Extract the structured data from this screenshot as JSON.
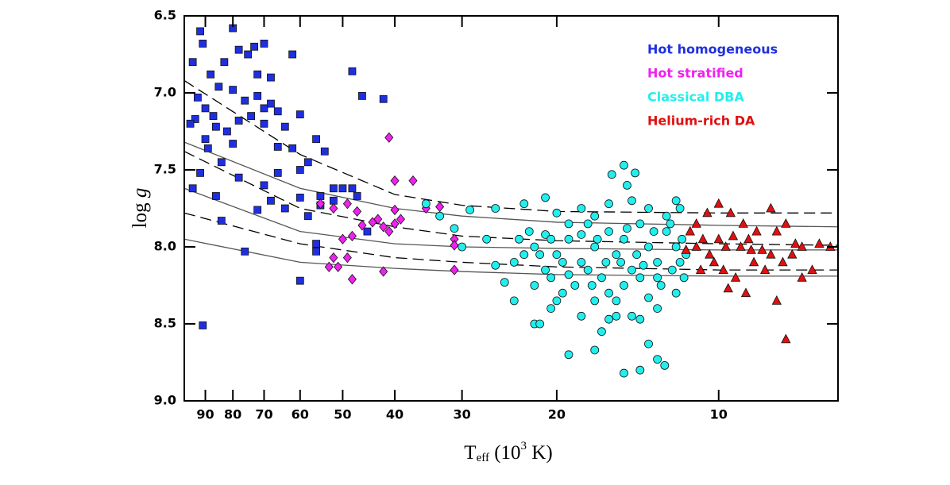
{
  "chart_data": {
    "type": "scatter",
    "xlabel": {
      "main": "T",
      "sub": "eff",
      "rest": " (10",
      "sup": "3",
      "end": " K)"
    },
    "ylabel": {
      "main": "log",
      "italic": "g"
    },
    "xscale": "log",
    "xreverse": true,
    "xlim": [
      6,
      98.5
    ],
    "xticks": [
      90,
      80,
      70,
      60,
      50,
      40,
      30,
      20,
      10
    ],
    "yreverse": true,
    "ylim": [
      6.5,
      9.0
    ],
    "yticks": [
      6.5,
      {
        "value": 7,
        "label": "7.0"
      },
      7.5,
      {
        "value": 8,
        "label": "8.0"
      },
      8.5,
      {
        "value": 9,
        "label": "9.0"
      }
    ],
    "legend": "upper right",
    "series": [
      {
        "name": "Hot homogeneous",
        "color": "#1f2fe0",
        "marker": "square",
        "x": [
          92,
          91,
          95,
          80,
          88,
          83,
          78,
          73,
          70,
          75,
          72,
          68,
          62,
          48,
          46,
          42,
          93,
          90,
          87,
          85,
          80,
          76,
          72,
          70,
          68,
          66,
          60,
          56,
          54,
          58,
          60,
          62,
          64,
          66,
          70,
          74,
          78,
          82,
          86,
          90,
          94,
          96,
          89,
          84,
          80,
          92,
          95,
          86,
          78,
          70,
          68,
          72,
          64,
          60,
          58,
          55,
          52,
          50,
          47,
          45,
          56,
          56,
          76,
          84,
          60,
          91,
          66,
          52,
          48,
          55
        ],
        "y": [
          6.6,
          6.68,
          6.8,
          6.58,
          6.88,
          6.8,
          6.72,
          6.7,
          6.68,
          6.75,
          6.88,
          6.9,
          6.75,
          6.86,
          7.02,
          7.04,
          7.03,
          7.1,
          7.15,
          6.96,
          6.98,
          7.05,
          7.02,
          7.1,
          7.07,
          7.12,
          7.14,
          7.3,
          7.38,
          7.45,
          7.5,
          7.36,
          7.22,
          7.35,
          7.2,
          7.15,
          7.18,
          7.25,
          7.22,
          7.3,
          7.17,
          7.2,
          7.36,
          7.45,
          7.33,
          7.52,
          7.62,
          7.67,
          7.55,
          7.6,
          7.7,
          7.76,
          7.75,
          7.68,
          7.8,
          7.67,
          7.7,
          7.62,
          7.67,
          7.9,
          7.98,
          8.03,
          8.03,
          7.83,
          8.22,
          8.51,
          7.52,
          7.62,
          7.62,
          7.73
        ]
      },
      {
        "name": "Hot stratified",
        "color": "#f020f0",
        "marker": "diamond",
        "x": [
          41,
          40,
          37,
          55,
          52,
          49,
          47,
          46,
          43,
          42,
          40,
          39,
          41,
          35,
          33,
          44,
          48,
          50,
          31,
          31,
          31,
          52,
          49,
          51,
          53,
          48,
          42,
          40
        ],
        "y": [
          7.29,
          7.57,
          7.57,
          7.72,
          7.75,
          7.72,
          7.77,
          7.86,
          7.82,
          7.87,
          7.76,
          7.82,
          7.9,
          7.75,
          7.74,
          7.84,
          7.93,
          7.95,
          7.95,
          7.99,
          8.15,
          8.07,
          8.07,
          8.13,
          8.13,
          8.21,
          8.16,
          7.85
        ]
      },
      {
        "name": "Classical DBA",
        "color": "#22eeee",
        "marker": "circle",
        "x": [
          35,
          33,
          31,
          30,
          29,
          26,
          27,
          26,
          25,
          23,
          21,
          20,
          24,
          22,
          21.5,
          20.5,
          19,
          17,
          16.5,
          15,
          14,
          13.5,
          13,
          12.6,
          16,
          15.5,
          14.5,
          14,
          15,
          14.3,
          14.8,
          15.8,
          12,
          11.8,
          11.8,
          11.6,
          13.5,
          13,
          24,
          22.5,
          22,
          21,
          20,
          19,
          18,
          17.5,
          17,
          16.5,
          16,
          15.5,
          15,
          14.5,
          14,
          13.5,
          13,
          12.5,
          12,
          11.5,
          18.5,
          19.5,
          20.5,
          17,
          16,
          15,
          14,
          13,
          12.2,
          12.5,
          13.5,
          14.5,
          16,
          17,
          18,
          19,
          21,
          23,
          22,
          20,
          18,
          17.5,
          16.8,
          15.2,
          14.2,
          13.2,
          12.8,
          12,
          18,
          19.5,
          21.5,
          23.5,
          20.5,
          16.2,
          14.8,
          13.8,
          12.3,
          11.7,
          15.5,
          19,
          17.2
        ],
        "y": [
          7.72,
          7.8,
          7.88,
          8.0,
          7.76,
          7.75,
          7.95,
          8.12,
          8.23,
          7.72,
          7.68,
          7.78,
          8.35,
          8.5,
          8.5,
          8.4,
          8.7,
          8.67,
          8.55,
          8.82,
          8.8,
          8.63,
          8.73,
          8.77,
          8.47,
          8.45,
          8.45,
          8.47,
          7.47,
          7.52,
          7.6,
          7.53,
          7.7,
          7.75,
          8.1,
          8.2,
          8.33,
          8.4,
          8.1,
          7.9,
          8.0,
          8.15,
          8.05,
          7.95,
          8.1,
          7.85,
          8.0,
          8.2,
          7.9,
          8.05,
          7.95,
          8.15,
          7.85,
          8.0,
          8.1,
          7.9,
          8.0,
          8.05,
          8.25,
          8.3,
          8.2,
          8.35,
          8.3,
          8.25,
          8.2,
          8.2,
          8.15,
          7.8,
          7.75,
          7.7,
          7.72,
          7.8,
          7.75,
          7.85,
          7.92,
          8.05,
          8.25,
          8.35,
          8.45,
          8.15,
          7.95,
          8.1,
          8.05,
          7.9,
          8.25,
          8.3,
          7.92,
          8.1,
          8.05,
          7.95,
          7.95,
          8.1,
          7.88,
          8.12,
          7.85,
          7.95,
          8.35,
          8.18,
          8.25
        ]
      },
      {
        "name": "Helium-rich DA",
        "color": "#e01010",
        "marker": "triangle",
        "x": [
          11,
          10.5,
          10,
          9.5,
          9,
          8,
          11.3,
          11,
          10.7,
          10.4,
          10,
          9.7,
          9.4,
          9.1,
          8.8,
          8.5,
          8.3,
          8,
          7.8,
          7.5,
          7.2,
          7,
          6.5,
          10.2,
          9.8,
          9.3,
          8.6,
          8.2,
          7.6,
          7.3,
          7,
          6.7,
          9.6,
          8.9,
          7.8,
          7.5,
          10.8,
          11.5,
          6.2,
          8.7
        ],
        "y": [
          7.85,
          7.78,
          7.72,
          7.78,
          7.85,
          7.75,
          7.9,
          8.0,
          7.95,
          8.05,
          7.95,
          8.0,
          7.93,
          8.0,
          7.95,
          7.9,
          8.02,
          8.05,
          7.9,
          7.85,
          7.98,
          8.0,
          7.98,
          8.1,
          8.15,
          8.2,
          8.1,
          8.15,
          8.1,
          8.05,
          8.2,
          8.15,
          8.27,
          8.3,
          8.35,
          8.6,
          8.15,
          8.02,
          8.0,
          8.02
        ]
      }
    ],
    "curves": [
      {
        "dash": false,
        "x": [
          98.5,
          60,
          40,
          30,
          20,
          10,
          6
        ],
        "y": [
          7.32,
          7.62,
          7.75,
          7.8,
          7.84,
          7.86,
          7.87
        ]
      },
      {
        "dash": true,
        "x": [
          98.5,
          60,
          40,
          30,
          20,
          10,
          6
        ],
        "y": [
          6.92,
          7.4,
          7.66,
          7.73,
          7.77,
          7.78,
          7.78
        ]
      },
      {
        "dash": false,
        "x": [
          98.5,
          60,
          40,
          30,
          20,
          10,
          6
        ],
        "y": [
          7.62,
          7.9,
          7.98,
          8.0,
          8.01,
          8.02,
          8.02
        ]
      },
      {
        "dash": true,
        "x": [
          98.5,
          60,
          40,
          30,
          20,
          10,
          6
        ],
        "y": [
          7.38,
          7.75,
          7.87,
          7.93,
          7.96,
          7.98,
          7.99
        ]
      },
      {
        "dash": false,
        "x": [
          98.5,
          60,
          40,
          30,
          20,
          10,
          6
        ],
        "y": [
          7.95,
          8.1,
          8.14,
          8.16,
          8.18,
          8.19,
          8.19
        ]
      },
      {
        "dash": true,
        "x": [
          98.5,
          60,
          40,
          30,
          20,
          10,
          6
        ],
        "y": [
          7.78,
          7.98,
          8.07,
          8.1,
          8.13,
          8.15,
          8.15
        ]
      }
    ]
  }
}
